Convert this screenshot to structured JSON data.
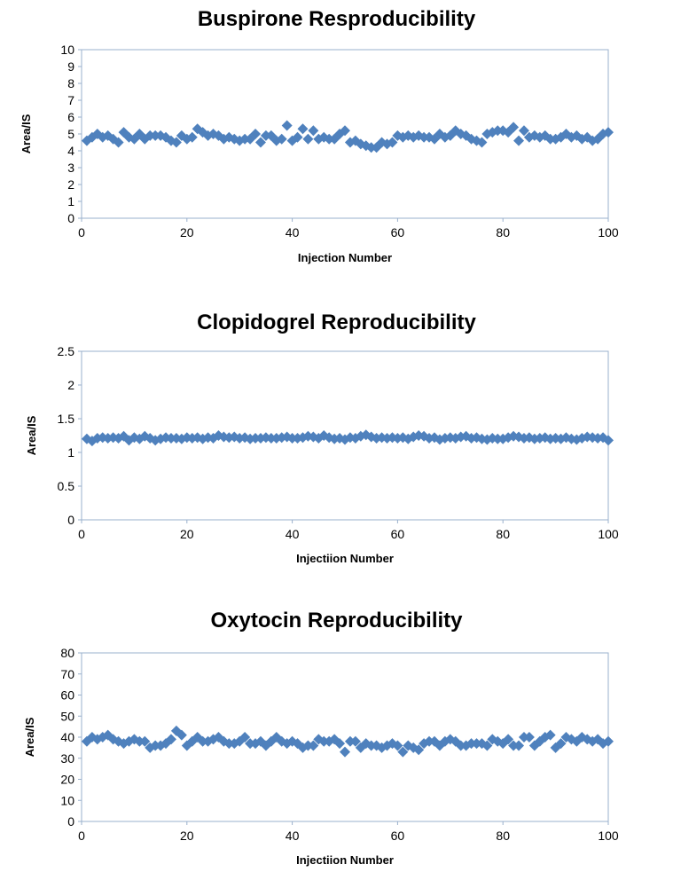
{
  "chart_data": [
    {
      "type": "scatter",
      "title": "Buspirone Resproducibility",
      "xlabel": "Injection Number",
      "ylabel": "Area/IS",
      "xlim": [
        0,
        100
      ],
      "ylim": [
        0,
        10
      ],
      "xticks": [
        "0",
        "20",
        "40",
        "60",
        "80",
        "100"
      ],
      "yticks": [
        "0",
        "1",
        "2",
        "3",
        "4",
        "5",
        "6",
        "7",
        "8",
        "9",
        "10"
      ],
      "grid": false,
      "marker_color": "#4f81bd",
      "series": [
        {
          "x": [
            1,
            2,
            3,
            4,
            5,
            6,
            7,
            8,
            9,
            10,
            11,
            12,
            13,
            14,
            15,
            16,
            17,
            18,
            19,
            20,
            21,
            22,
            23,
            24,
            25,
            26,
            27,
            28,
            29,
            30,
            31,
            32,
            33,
            34,
            35,
            36,
            37,
            38,
            39,
            40,
            41,
            42,
            43,
            44,
            45,
            46,
            47,
            48,
            49,
            50,
            51,
            52,
            53,
            54,
            55,
            56,
            57,
            58,
            59,
            60,
            61,
            62,
            63,
            64,
            65,
            66,
            67,
            68,
            69,
            70,
            71,
            72,
            73,
            74,
            75,
            76,
            77,
            78,
            79,
            80,
            81,
            82,
            83,
            84,
            85,
            86,
            87,
            88,
            89,
            90,
            91,
            92,
            93,
            94,
            95,
            96,
            97,
            98,
            99,
            100
          ],
          "y": [
            4.6,
            4.8,
            5.0,
            4.8,
            4.9,
            4.7,
            4.5,
            5.1,
            4.8,
            4.7,
            5.0,
            4.7,
            4.9,
            4.9,
            4.9,
            4.8,
            4.6,
            4.5,
            4.9,
            4.7,
            4.8,
            5.3,
            5.1,
            4.9,
            5.0,
            4.9,
            4.7,
            4.8,
            4.7,
            4.6,
            4.7,
            4.7,
            5.0,
            4.5,
            4.9,
            4.9,
            4.6,
            4.7,
            5.5,
            4.6,
            4.8,
            5.3,
            4.7,
            5.2,
            4.7,
            4.8,
            4.7,
            4.7,
            5.0,
            5.2,
            4.5,
            4.6,
            4.4,
            4.3,
            4.2,
            4.2,
            4.5,
            4.4,
            4.5,
            4.9,
            4.8,
            4.9,
            4.8,
            4.9,
            4.8,
            4.8,
            4.7,
            5.0,
            4.8,
            4.9,
            5.2,
            5.0,
            4.9,
            4.7,
            4.6,
            4.5,
            5.0,
            5.1,
            5.2,
            5.2,
            5.1,
            5.4,
            4.6,
            5.2,
            4.8,
            4.9,
            4.8,
            4.9,
            4.7,
            4.7,
            4.8,
            5.0,
            4.8,
            4.9,
            4.7,
            4.8,
            4.6,
            4.7,
            5.0,
            5.1
          ]
        }
      ]
    },
    {
      "type": "scatter",
      "title": "Clopidogrel Reproducibility",
      "xlabel": "Injectiion Number",
      "ylabel": "Area/IS",
      "xlim": [
        0,
        100
      ],
      "ylim": [
        0,
        2.5
      ],
      "xticks": [
        "0",
        "20",
        "40",
        "60",
        "80",
        "100"
      ],
      "yticks": [
        "0",
        "0.5",
        "1",
        "1.5",
        "2",
        "2.5"
      ],
      "grid": false,
      "marker_color": "#4f81bd",
      "series": [
        {
          "x": [
            1,
            2,
            3,
            4,
            5,
            6,
            7,
            8,
            9,
            10,
            11,
            12,
            13,
            14,
            15,
            16,
            17,
            18,
            19,
            20,
            21,
            22,
            23,
            24,
            25,
            26,
            27,
            28,
            29,
            30,
            31,
            32,
            33,
            34,
            35,
            36,
            37,
            38,
            39,
            40,
            41,
            42,
            43,
            44,
            45,
            46,
            47,
            48,
            49,
            50,
            51,
            52,
            53,
            54,
            55,
            56,
            57,
            58,
            59,
            60,
            61,
            62,
            63,
            64,
            65,
            66,
            67,
            68,
            69,
            70,
            71,
            72,
            73,
            74,
            75,
            76,
            77,
            78,
            79,
            80,
            81,
            82,
            83,
            84,
            85,
            86,
            87,
            88,
            89,
            90,
            91,
            92,
            93,
            94,
            95,
            96,
            97,
            98,
            99,
            100
          ],
          "y": [
            1.2,
            1.17,
            1.21,
            1.22,
            1.21,
            1.22,
            1.21,
            1.24,
            1.18,
            1.22,
            1.2,
            1.24,
            1.21,
            1.18,
            1.2,
            1.22,
            1.21,
            1.21,
            1.2,
            1.22,
            1.21,
            1.22,
            1.2,
            1.22,
            1.21,
            1.25,
            1.23,
            1.22,
            1.23,
            1.21,
            1.22,
            1.2,
            1.21,
            1.21,
            1.22,
            1.21,
            1.21,
            1.22,
            1.23,
            1.21,
            1.21,
            1.22,
            1.24,
            1.23,
            1.21,
            1.25,
            1.22,
            1.2,
            1.21,
            1.19,
            1.22,
            1.21,
            1.24,
            1.26,
            1.23,
            1.21,
            1.22,
            1.21,
            1.22,
            1.21,
            1.22,
            1.2,
            1.23,
            1.25,
            1.24,
            1.21,
            1.22,
            1.19,
            1.21,
            1.22,
            1.21,
            1.23,
            1.24,
            1.21,
            1.22,
            1.2,
            1.19,
            1.21,
            1.2,
            1.2,
            1.22,
            1.24,
            1.23,
            1.21,
            1.22,
            1.2,
            1.21,
            1.22,
            1.2,
            1.21,
            1.2,
            1.22,
            1.2,
            1.19,
            1.21,
            1.23,
            1.22,
            1.21,
            1.22,
            1.18
          ]
        }
      ]
    },
    {
      "type": "scatter",
      "title": "Oxytocin Reproducibility",
      "xlabel": "Injectiion Number",
      "ylabel": "Area/IS",
      "xlim": [
        0,
        100
      ],
      "ylim": [
        0,
        80
      ],
      "xticks": [
        "0",
        "20",
        "40",
        "60",
        "80",
        "100"
      ],
      "yticks": [
        "0",
        "10",
        "20",
        "30",
        "40",
        "50",
        "60",
        "70",
        "80"
      ],
      "grid": false,
      "marker_color": "#4f81bd",
      "series": [
        {
          "x": [
            1,
            2,
            3,
            4,
            5,
            6,
            7,
            8,
            9,
            10,
            11,
            12,
            13,
            14,
            15,
            16,
            17,
            18,
            19,
            20,
            21,
            22,
            23,
            24,
            25,
            26,
            27,
            28,
            29,
            30,
            31,
            32,
            33,
            34,
            35,
            36,
            37,
            38,
            39,
            40,
            41,
            42,
            43,
            44,
            45,
            46,
            47,
            48,
            49,
            50,
            51,
            52,
            53,
            54,
            55,
            56,
            57,
            58,
            59,
            60,
            61,
            62,
            63,
            64,
            65,
            66,
            67,
            68,
            69,
            70,
            71,
            72,
            73,
            74,
            75,
            76,
            77,
            78,
            79,
            80,
            81,
            82,
            83,
            84,
            85,
            86,
            87,
            88,
            89,
            90,
            91,
            92,
            93,
            94,
            95,
            96,
            97,
            98,
            99,
            100
          ],
          "y": [
            38,
            40,
            39,
            40,
            41,
            39,
            38,
            37,
            38,
            39,
            38,
            38,
            35,
            36,
            36,
            37,
            39,
            43,
            41,
            36,
            38,
            40,
            38,
            38,
            39,
            40,
            38,
            37,
            37,
            38,
            40,
            37,
            37,
            38,
            36,
            38,
            40,
            38,
            37,
            38,
            37,
            35,
            36,
            36,
            39,
            38,
            38,
            39,
            37,
            33,
            38,
            38,
            35,
            37,
            36,
            36,
            35,
            36,
            37,
            36,
            33,
            36,
            35,
            34,
            37,
            38,
            38,
            36,
            38,
            39,
            38,
            36,
            36,
            37,
            37,
            37,
            36,
            39,
            38,
            37,
            39,
            36,
            36,
            40,
            40,
            36,
            38,
            40,
            41,
            35,
            37,
            40,
            39,
            38,
            40,
            39,
            38,
            39,
            37,
            38
          ]
        }
      ]
    }
  ]
}
